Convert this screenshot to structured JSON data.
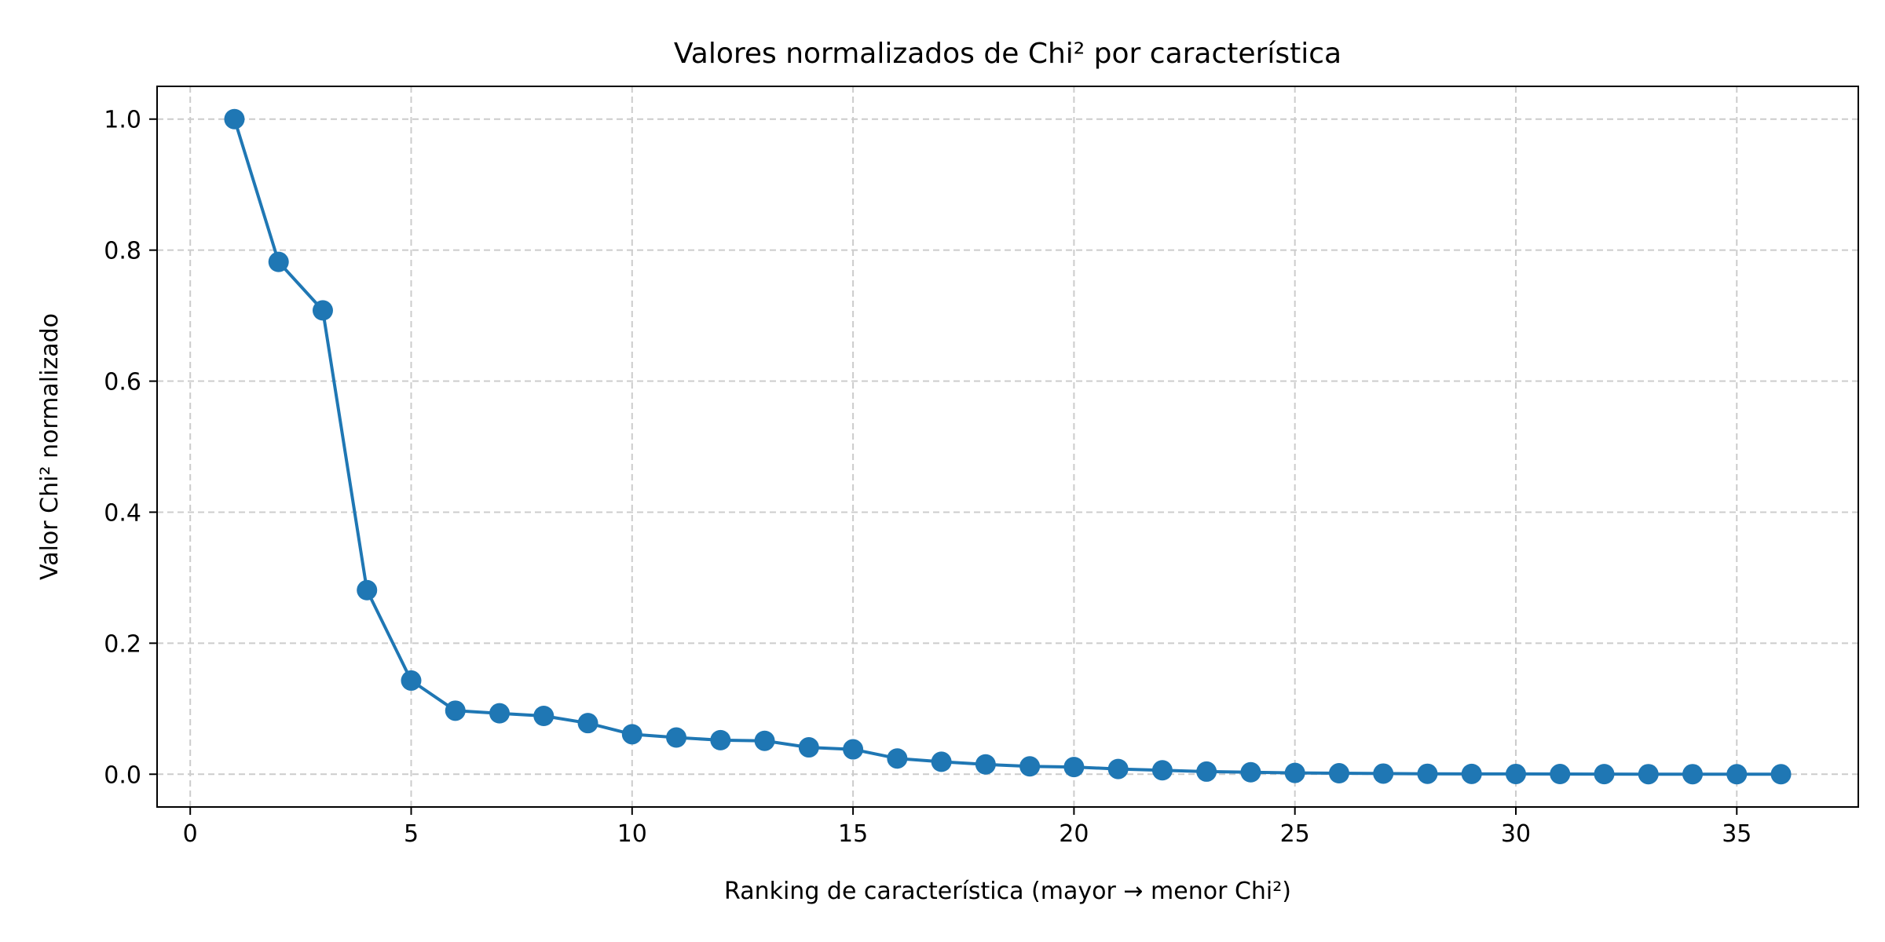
{
  "chart_data": {
    "type": "line",
    "title": "Valores normalizados de Chi² por característica",
    "xlabel": "Ranking de característica (mayor → menor Chi²)",
    "ylabel": "Valor Chi² normalizado",
    "xlim": [
      -0.75,
      37.75
    ],
    "ylim": [
      -0.05,
      1.05
    ],
    "x_ticks": [
      0,
      5,
      10,
      15,
      20,
      25,
      30,
      35
    ],
    "y_ticks": [
      0.0,
      0.2,
      0.4,
      0.6,
      0.8,
      1.0
    ],
    "x_tick_labels": [
      "0",
      "5",
      "10",
      "15",
      "20",
      "25",
      "30",
      "35"
    ],
    "y_tick_labels": [
      "0.0",
      "0.2",
      "0.4",
      "0.6",
      "0.8",
      "1.0"
    ],
    "grid": true,
    "grid_style": "dashed",
    "marker": "circle",
    "series": [
      {
        "color": "#1f77b4",
        "x": [
          1,
          2,
          3,
          4,
          5,
          6,
          7,
          8,
          9,
          10,
          11,
          12,
          13,
          14,
          15,
          16,
          17,
          18,
          19,
          20,
          21,
          22,
          23,
          24,
          25,
          26,
          27,
          28,
          29,
          30,
          31,
          32,
          33,
          34,
          35,
          36
        ],
        "values": [
          1.0,
          0.782,
          0.708,
          0.281,
          0.143,
          0.097,
          0.093,
          0.089,
          0.078,
          0.061,
          0.056,
          0.052,
          0.051,
          0.041,
          0.038,
          0.024,
          0.019,
          0.015,
          0.012,
          0.011,
          0.008,
          0.006,
          0.004,
          0.003,
          0.002,
          0.0015,
          0.001,
          0.0007,
          0.0005,
          0.0004,
          0.0003,
          0.0002,
          0.0001,
          0.0001,
          0.0,
          0.0
        ]
      }
    ]
  }
}
